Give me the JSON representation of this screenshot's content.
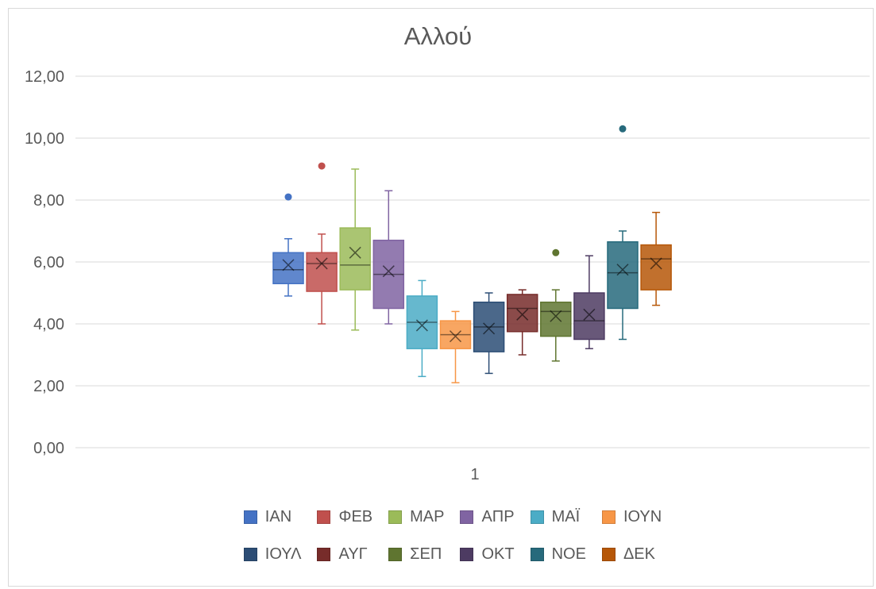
{
  "chart_data": {
    "type": "box",
    "title": "Αλλού",
    "xlabel": "",
    "ylabel": "",
    "x_tick_labels": [
      "1"
    ],
    "ylim": [
      0,
      12
    ],
    "y_ticks": [
      "0,00",
      "2,00",
      "4,00",
      "6,00",
      "8,00",
      "10,00",
      "12,00"
    ],
    "grid": true,
    "legend_position": "bottom",
    "series": [
      {
        "name": "ΙΑΝ",
        "color": "#4472C4",
        "min": 4.9,
        "q1": 5.3,
        "median": 5.75,
        "q3": 6.3,
        "max": 6.75,
        "mean": 5.9,
        "outliers": [
          8.1
        ]
      },
      {
        "name": "ΦΕΒ",
        "color": "#C0504D",
        "min": 4.0,
        "q1": 5.05,
        "median": 5.95,
        "q3": 6.3,
        "max": 6.9,
        "mean": 5.95,
        "outliers": [
          9.1
        ]
      },
      {
        "name": "ΜΑΡ",
        "color": "#9BBB59",
        "min": 3.8,
        "q1": 5.1,
        "median": 5.9,
        "q3": 7.1,
        "max": 9.0,
        "mean": 6.3,
        "outliers": []
      },
      {
        "name": "ΑΠΡ",
        "color": "#8064A2",
        "min": 4.0,
        "q1": 4.5,
        "median": 5.6,
        "q3": 6.7,
        "max": 8.3,
        "mean": 5.7,
        "outliers": []
      },
      {
        "name": "ΜΑΪ",
        "color": "#4BACC6",
        "min": 2.3,
        "q1": 3.2,
        "median": 4.05,
        "q3": 4.9,
        "max": 5.4,
        "mean": 3.95,
        "outliers": []
      },
      {
        "name": "ΙΟΥΝ",
        "color": "#F79646",
        "min": 2.1,
        "q1": 3.2,
        "median": 3.65,
        "q3": 4.1,
        "max": 4.4,
        "mean": 3.6,
        "outliers": []
      },
      {
        "name": "ΙΟΥΛ",
        "color": "#2C4D75",
        "min": 2.4,
        "q1": 3.1,
        "median": 3.9,
        "q3": 4.7,
        "max": 5.0,
        "mean": 3.85,
        "outliers": []
      },
      {
        "name": "ΑΥΓ",
        "color": "#772C2A",
        "min": 3.0,
        "q1": 3.75,
        "median": 4.5,
        "q3": 4.95,
        "max": 5.1,
        "mean": 4.3,
        "outliers": []
      },
      {
        "name": "ΣΕΠ",
        "color": "#5F7530",
        "min": 2.8,
        "q1": 3.6,
        "median": 4.4,
        "q3": 4.7,
        "max": 5.1,
        "mean": 4.25,
        "outliers": [
          6.3
        ]
      },
      {
        "name": "ΟΚΤ",
        "color": "#4D3B62",
        "min": 3.2,
        "q1": 3.5,
        "median": 4.1,
        "q3": 5.0,
        "max": 6.2,
        "mean": 4.3,
        "outliers": []
      },
      {
        "name": "ΝΟΕ",
        "color": "#276A7C",
        "min": 3.5,
        "q1": 4.5,
        "median": 5.65,
        "q3": 6.65,
        "max": 7.0,
        "mean": 5.75,
        "outliers": [
          10.3
        ]
      },
      {
        "name": "ΔΕΚ",
        "color": "#B65708",
        "min": 4.6,
        "q1": 5.1,
        "median": 6.1,
        "q3": 6.55,
        "max": 7.6,
        "mean": 5.95,
        "outliers": []
      }
    ]
  }
}
